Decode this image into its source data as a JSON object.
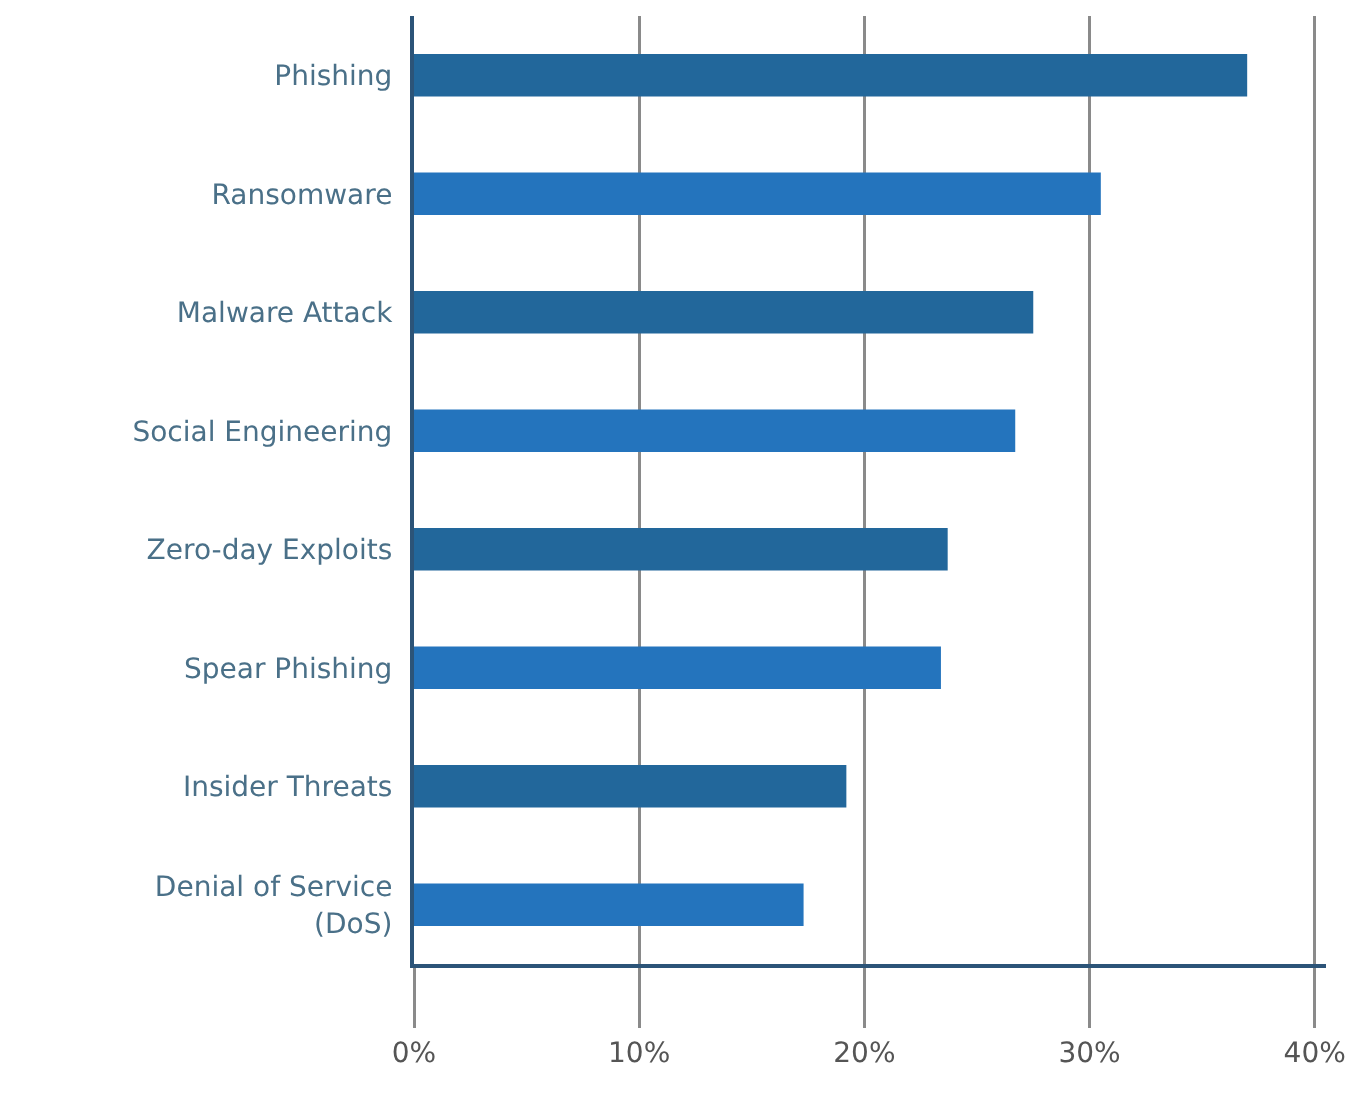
{
  "chart_data": {
    "type": "bar",
    "orientation": "horizontal",
    "categories": [
      "Phishing",
      "Ransomware",
      "Malware Attack",
      "Social Engineering",
      "Zero-day Exploits",
      "Spear Phishing",
      "Insider Threats",
      "Denial of Service (DoS)"
    ],
    "values": [
      37,
      30.5,
      27.5,
      26.7,
      23.7,
      23.4,
      19.2,
      17.3
    ],
    "colors": [
      "#22679b",
      "#2474bd",
      "#22679b",
      "#2474bd",
      "#22679b",
      "#2474bd",
      "#22679b",
      "#2474bd"
    ],
    "xlim": [
      0,
      40.5
    ],
    "xticks": [
      {
        "value": 0,
        "label": "0%"
      },
      {
        "value": 10,
        "label": "10%"
      },
      {
        "value": 20,
        "label": "20%"
      },
      {
        "value": 30,
        "label": "30%"
      },
      {
        "value": 40,
        "label": "40%"
      }
    ],
    "grid": "x",
    "legend": false
  }
}
